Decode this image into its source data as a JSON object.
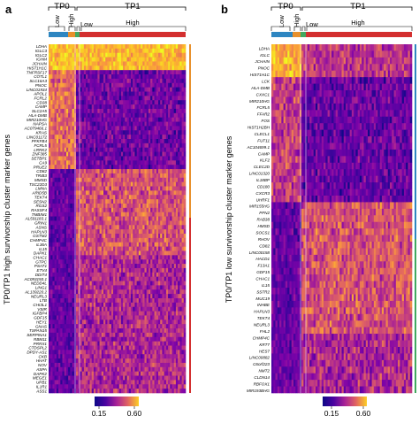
{
  "chart_data": [
    {
      "type": "heatmap",
      "panel": "a",
      "ylabel": "TP0/TP1 high survivorship cluster marker genes",
      "timepoints": [
        "TP0",
        "TP1"
      ],
      "groups": [
        "Low",
        "High",
        "Low",
        "High"
      ],
      "group_colors": [
        "#2e86c1",
        "#e8902c",
        "#41a85f",
        "#d32f2f"
      ],
      "side_bar_color": "#e8902c",
      "side_bar_bottom_color": "#d32f2f",
      "colorbar": {
        "min_label": "0.15",
        "max_label": "0.60",
        "range": [
          0.15,
          0.6
        ]
      },
      "genes": [
        "LDHA",
        "IGLC3",
        "IGLC2",
        "IGHM",
        "JCHAIN",
        "HIST1H1C",
        "TNFRSF17",
        "COTL1",
        "SLC16A3",
        "PNOC",
        "LINC01934",
        "APOL1",
        "FCRL2",
        "CD38",
        "CAMP",
        "SLC2A5",
        "HLA-DMB",
        "MIR210HG",
        "NAPSA",
        "AC079466.1",
        "KRAS",
        "LINC01172",
        "PFKFB4",
        "FCRL5",
        "LRRK2",
        "ZNF385",
        "SETBP1",
        "CA9",
        "PRUE2",
        "CD82",
        "TRIB3",
        "MMSD",
        "TSC22D3",
        "LMNA",
        "ARID5B",
        "TEKT4",
        "SESN2",
        "RGS2",
        "RASSF4",
        "TMBIM1",
        "AL591183.1",
        "GRIN1",
        "ASNS",
        "HAPLN3",
        "GSTM2",
        "CHMP4C",
        "IL36A",
        "IL15",
        "DAPK1",
        "CHAC1",
        "GTPC",
        "PSAT1",
        "ETV4",
        "DDIT4",
        "AC093150.1",
        "NEDD4L",
        "LING1",
        "AL139220.2",
        "NEURL3",
        "LTB",
        "CHI3L1",
        "VSIR",
        "IGFBP4",
        "GDF15",
        "HEY1",
        "GNAS",
        "TSPAN15",
        "SERPINA1",
        "RBM11",
        "PRRX1",
        "CTDSPL2",
        "DPDY-AS1",
        "CKB",
        "HHAT",
        "NOV",
        "ASPA",
        "DAPK2",
        "MEGE1",
        "UPB1",
        "IL1R1",
        "ASS1"
      ]
    },
    {
      "type": "heatmap",
      "panel": "b",
      "ylabel": "TP0/TP1 low survivorship cluster marker genes",
      "timepoints": [
        "TP0",
        "TP1"
      ],
      "groups": [
        "Low",
        "High",
        "Low",
        "High"
      ],
      "group_colors": [
        "#2e86c1",
        "#e8902c",
        "#41a85f",
        "#d32f2f"
      ],
      "side_bar_color": "#2e86c1",
      "side_bar_bottom_color": "#41a85f",
      "colorbar": {
        "min_label": "0.15",
        "max_label": "0.60",
        "range": [
          0.15,
          0.6
        ]
      },
      "genes": [
        "LDHA",
        "IGLC",
        "JCHAIN",
        "PNOC",
        "HIST1H1C",
        "LCK",
        "HLA-DMB",
        "CXXC1",
        "MIR210HG",
        "FCRL5",
        "FFAR2",
        "FOS",
        "HIST1H2BH",
        "CLECL1",
        "FUT11",
        "AC104699.1",
        "CAMP",
        "KLF2",
        "CLEC2D",
        "LINC01320",
        "IL18BP",
        "CD180",
        "CXCR3",
        "UHRF1",
        "MIR155HG",
        "PFN2",
        "RAB38",
        "HMSD",
        "SOCS1",
        "RHOV",
        "CD82",
        "LINC00158",
        "HACD1",
        "F13A1",
        "GDF15",
        "CHAC1",
        "IL15",
        "SSTR2",
        "MUC19",
        "INHBE",
        "HAPLN3",
        "TEKT4",
        "NEURL3",
        "FHL2",
        "CHMP4C",
        "KRT7",
        "HES7",
        "LINC00882",
        "C6orf223",
        "NMT2",
        "CLDN14",
        "RBFOX1",
        "MIR193BHG"
      ]
    }
  ],
  "panelA": {
    "letter": "a",
    "tp0": "TP0",
    "tp1": "TP1",
    "low0": "Low",
    "high0": "High",
    "low1": "Low",
    "high1": "High",
    "ylabel": "TP0/TP1 high survivorship cluster marker genes",
    "cb_min": "0.15",
    "cb_max": "0.60"
  },
  "panelB": {
    "letter": "b",
    "tp0": "TP0",
    "tp1": "TP1",
    "low0": "Low",
    "high0": "High",
    "low1": "Low",
    "high1": "High",
    "ylabel": "TP0/TP1 low survivorship cluster marker genes",
    "cb_min": "0.15",
    "cb_max": "0.60"
  }
}
